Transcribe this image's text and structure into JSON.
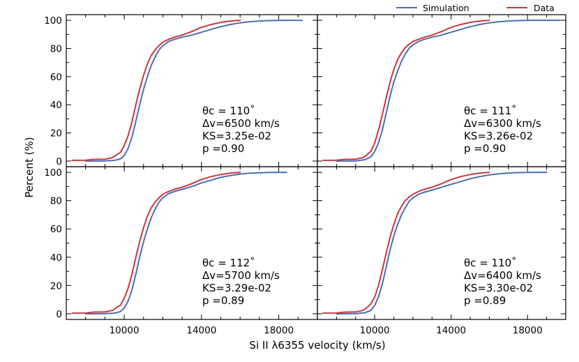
{
  "legend": {
    "items": [
      {
        "label": "Simulation",
        "color": "#4a6db5"
      },
      {
        "label": "Data",
        "color": "#c8373b"
      }
    ],
    "placement": "top-right, above panels"
  },
  "axes": {
    "xlabel": "Si II λ6355 velocity (km/s)",
    "ylabel": "Percent (%)",
    "xlim": [
      7000,
      20000
    ],
    "ylim": [
      -4,
      104
    ],
    "xticks": [
      10000,
      14000,
      18000
    ],
    "xtick_labels": [
      "10000",
      "14000",
      "18000"
    ],
    "yticks": [
      0,
      20,
      40,
      60,
      80,
      100
    ],
    "ytick_labels": [
      "0",
      "20",
      "40",
      "60",
      "80",
      "100"
    ]
  },
  "chart_data": [
    {
      "type": "line",
      "panel": "top-left",
      "annotation": {
        "theta": "θc = 110˚",
        "dv": "Δv=6500 km/s",
        "ks": "KS=3.25e-02",
        "p": "p  =0.90"
      },
      "series": [
        {
          "name": "Simulation",
          "x": [
            8000,
            9000,
            9500,
            9800,
            10000,
            10200,
            10400,
            10600,
            10800,
            11000,
            11200,
            11400,
            11600,
            11800,
            12000,
            12300,
            12600,
            13000,
            13500,
            14000,
            14500,
            15000,
            15500,
            16000,
            16500,
            17000,
            17500,
            18000,
            18500,
            19200
          ],
          "values": [
            0,
            0.1,
            0.5,
            1.5,
            4,
            9,
            17,
            28,
            40,
            51,
            60,
            68,
            74,
            79,
            82,
            85,
            86.5,
            88,
            89.5,
            91.5,
            93.5,
            95.5,
            97,
            98.2,
            99,
            99.5,
            99.8,
            99.95,
            100,
            100
          ]
        },
        {
          "name": "Data",
          "x": [
            7300,
            8000,
            8400,
            9000,
            9400,
            9600,
            9800,
            10000,
            10200,
            10400,
            10600,
            10800,
            11000,
            11200,
            11400,
            11600,
            11800,
            12000,
            12300,
            12600,
            13000,
            13500,
            14000,
            14500,
            15000,
            15500,
            16000
          ],
          "values": [
            0.5,
            0.6,
            1.2,
            1.3,
            2.5,
            4.5,
            6,
            11,
            18,
            28,
            40,
            51,
            61,
            69,
            75,
            79,
            82,
            84.5,
            86.5,
            88,
            89.5,
            92,
            95,
            97,
            98.5,
            99.5,
            100
          ]
        }
      ]
    },
    {
      "type": "line",
      "panel": "top-right",
      "annotation": {
        "theta": "θc = 111˚",
        "dv": "Δv=6300 km/s",
        "ks": "KS=3.26e-02",
        "p": "p  =0.90"
      },
      "series": [
        {
          "name": "Simulation",
          "x": [
            8000,
            9000,
            9500,
            9800,
            10000,
            10200,
            10400,
            10600,
            10800,
            11000,
            11200,
            11400,
            11600,
            11800,
            12000,
            12300,
            12600,
            13000,
            13500,
            14000,
            14500,
            15000,
            15500,
            16000,
            16500,
            17000,
            17500,
            18000,
            18500,
            19700
          ],
          "values": [
            0,
            0.1,
            1,
            3,
            7,
            13,
            22,
            34,
            46,
            56,
            64,
            71,
            76,
            80,
            82.5,
            85,
            86.5,
            88,
            89.5,
            91.5,
            93.5,
            95.5,
            97,
            98.2,
            99,
            99.5,
            99.8,
            99.95,
            100,
            100
          ]
        },
        {
          "name": "Data",
          "x": [
            7300,
            8000,
            8400,
            9000,
            9400,
            9600,
            9800,
            10000,
            10200,
            10400,
            10600,
            10800,
            11000,
            11200,
            11400,
            11600,
            11800,
            12000,
            12300,
            12600,
            13000,
            13500,
            14000,
            14500,
            15000,
            15500,
            16000
          ],
          "values": [
            0.5,
            0.6,
            1.2,
            1.3,
            2.5,
            4.5,
            7,
            13,
            22,
            33,
            45,
            56,
            65,
            72,
            77,
            80.5,
            83,
            85,
            86.5,
            88,
            89.5,
            92,
            95,
            97,
            98.5,
            99.5,
            100
          ]
        }
      ]
    },
    {
      "type": "line",
      "panel": "bottom-left",
      "annotation": {
        "theta": "θc = 112˚",
        "dv": "Δv=5700 km/s",
        "ks": "KS=3.29e-02",
        "p": "p  =0.89"
      },
      "series": [
        {
          "name": "Simulation",
          "x": [
            8000,
            9000,
            9500,
            9800,
            10000,
            10200,
            10400,
            10600,
            10800,
            11000,
            11200,
            11400,
            11600,
            11800,
            12000,
            12300,
            12600,
            13000,
            13500,
            14000,
            14500,
            15000,
            15500,
            16000,
            16500,
            17000,
            17500,
            18000,
            18400
          ],
          "values": [
            0,
            0.1,
            0.5,
            1.5,
            4,
            9,
            17,
            28,
            40,
            51,
            60,
            68,
            74,
            79,
            82,
            85,
            86.5,
            88,
            90,
            92.5,
            94.5,
            96.5,
            97.8,
            98.8,
            99.4,
            99.7,
            99.9,
            100,
            100
          ]
        },
        {
          "name": "Data",
          "x": [
            7300,
            8000,
            8400,
            9000,
            9400,
            9600,
            9800,
            10000,
            10200,
            10400,
            10600,
            10800,
            11000,
            11200,
            11400,
            11600,
            11800,
            12000,
            12300,
            12600,
            13000,
            13500,
            14000,
            14500,
            15000,
            15500,
            16000
          ],
          "values": [
            0.5,
            0.6,
            1.2,
            1.3,
            2.5,
            4.5,
            6,
            11,
            18,
            28,
            40,
            51,
            61,
            69,
            75,
            79,
            82,
            84.5,
            86.5,
            88,
            89.5,
            92,
            95,
            97,
            98.5,
            99.5,
            100
          ]
        }
      ]
    },
    {
      "type": "line",
      "panel": "bottom-right",
      "annotation": {
        "theta": "θc = 110˚",
        "dv": "Δv=6400 km/s",
        "ks": "KS=3.30e-02",
        "p": "p  =0.89"
      },
      "series": [
        {
          "name": "Simulation",
          "x": [
            8000,
            9000,
            9500,
            9800,
            10000,
            10200,
            10400,
            10600,
            10800,
            11000,
            11200,
            11400,
            11600,
            11800,
            12000,
            12300,
            12600,
            13000,
            13500,
            14000,
            14500,
            15000,
            15500,
            16000,
            16500,
            17000,
            17500,
            18000,
            18500,
            19000
          ],
          "values": [
            0,
            0.1,
            0.8,
            2.5,
            6,
            12,
            21,
            33,
            45,
            55,
            63,
            70,
            75,
            79.5,
            82,
            84.5,
            86,
            87.5,
            89.5,
            91.5,
            93.5,
            95.5,
            97,
            98.2,
            99,
            99.5,
            99.8,
            99.95,
            100,
            100
          ]
        },
        {
          "name": "Data",
          "x": [
            7300,
            8000,
            8400,
            9000,
            9400,
            9600,
            9800,
            10000,
            10200,
            10400,
            10600,
            10800,
            11000,
            11200,
            11400,
            11600,
            11800,
            12000,
            12300,
            12600,
            13000,
            13500,
            14000,
            14500,
            15000,
            15500,
            16000
          ],
          "values": [
            0.5,
            0.6,
            1.2,
            1.3,
            2.5,
            4.5,
            7,
            12,
            20,
            31,
            43,
            54,
            63,
            71,
            76,
            80,
            82.5,
            84.5,
            86.5,
            88,
            89.5,
            92,
            95,
            97,
            98.5,
            99.5,
            100
          ]
        }
      ]
    }
  ]
}
